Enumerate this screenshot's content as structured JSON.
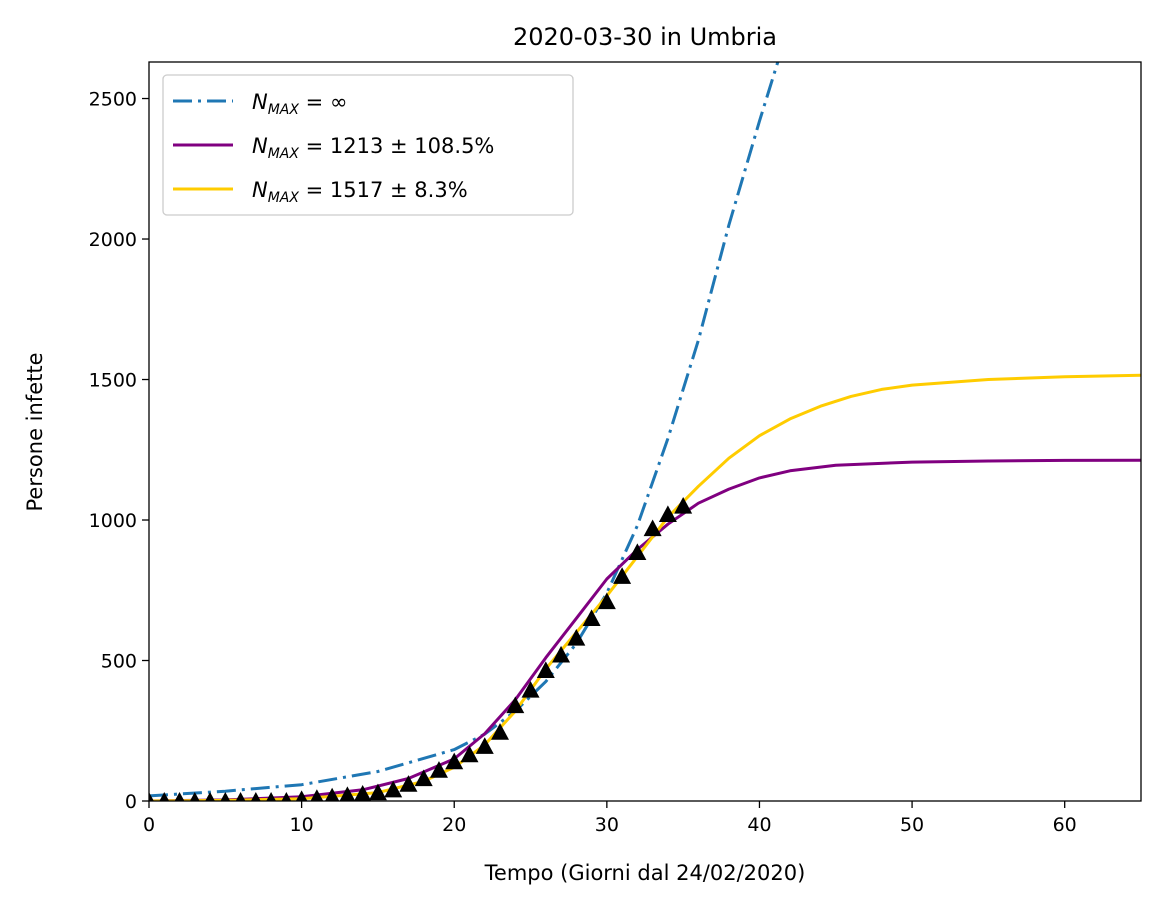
{
  "chart_data": {
    "type": "line",
    "title": "2020-03-30 in Umbria",
    "xlabel": "Tempo (Giorni dal 24/02/2020)",
    "ylabel": "Persone infette",
    "xlim": [
      0,
      65
    ],
    "ylim": [
      0,
      2630
    ],
    "xticks": [
      0,
      10,
      20,
      30,
      40,
      50,
      60
    ],
    "yticks": [
      0,
      500,
      1000,
      1500,
      2000,
      2500
    ],
    "grid": false,
    "legend_position": "top-left",
    "series": [
      {
        "name": "N_MAX = ∞",
        "legend": {
          "symbol": "N",
          "sub": "MAX",
          "rest": " = ∞"
        },
        "style": "dashdot",
        "color": "#1f77b4",
        "x": [
          0,
          5,
          10,
          15,
          20,
          22,
          24,
          26,
          28,
          30,
          32,
          34,
          36,
          38,
          40,
          41.2
        ],
        "y": [
          18,
          35,
          58,
          105,
          183,
          238,
          320,
          425,
          560,
          740,
          980,
          1290,
          1640,
          2050,
          2420,
          2630
        ]
      },
      {
        "name": "N_MAX = 1213 ± 108.5%",
        "legend": {
          "symbol": "N",
          "sub": "MAX",
          "rest": " = 1213 ± 108.5%"
        },
        "style": "solid",
        "color": "#800080",
        "x": [
          0,
          5,
          10,
          14,
          17,
          20,
          22,
          24,
          26,
          28,
          30,
          32,
          34,
          36,
          38,
          40,
          42,
          45,
          50,
          55,
          60,
          65
        ],
        "y": [
          0,
          4,
          15,
          40,
          80,
          150,
          240,
          360,
          510,
          650,
          790,
          895,
          985,
          1060,
          1110,
          1150,
          1175,
          1195,
          1206,
          1210,
          1212,
          1213
        ]
      },
      {
        "name": "N_MAX = 1517 ± 8.3%",
        "legend": {
          "symbol": "N",
          "sub": "MAX",
          "rest": " = 1517 ± 8.3%"
        },
        "style": "solid",
        "color": "#ffcc00",
        "x": [
          0,
          5,
          10,
          15,
          18,
          20,
          22,
          24,
          26,
          28,
          30,
          32,
          34,
          36,
          38,
          40,
          42,
          44,
          46,
          48,
          50,
          55,
          60,
          65
        ],
        "y": [
          0,
          2,
          8,
          30,
          70,
          120,
          200,
          320,
          470,
          600,
          730,
          870,
          1010,
          1120,
          1220,
          1300,
          1360,
          1405,
          1440,
          1465,
          1480,
          1500,
          1510,
          1515
        ]
      }
    ],
    "observed": {
      "marker": "triangle",
      "color": "#000000",
      "x": [
        0,
        1,
        2,
        3,
        4,
        5,
        6,
        7,
        8,
        9,
        10,
        11,
        12,
        13,
        14,
        15,
        16,
        17,
        18,
        19,
        20,
        21,
        22,
        23,
        24,
        25,
        26,
        27,
        28,
        29,
        30,
        31,
        32,
        33,
        34,
        35
      ],
      "y": [
        0,
        0,
        0,
        0,
        0,
        0,
        0,
        0,
        0,
        0,
        6,
        10,
        15,
        20,
        25,
        30,
        40,
        60,
        80,
        110,
        140,
        165,
        195,
        245,
        340,
        395,
        465,
        520,
        580,
        650,
        710,
        800,
        885,
        970,
        1020,
        1050
      ]
    }
  }
}
